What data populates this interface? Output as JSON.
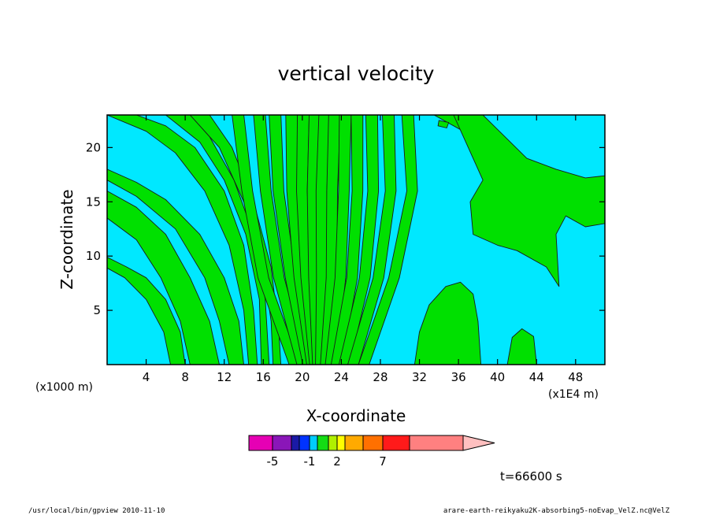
{
  "chart_data": {
    "type": "contour",
    "title": "vertical velocity",
    "xlabel": "X-coordinate",
    "ylabel": "Z-coordinate",
    "x_unit": "(x1000 m)",
    "x_unit2": "(x1E4 m)",
    "x_ticks": [
      4,
      8,
      12,
      16,
      20,
      24,
      28,
      32,
      36,
      40,
      44,
      48
    ],
    "y_ticks": [
      5,
      10,
      15,
      20
    ],
    "xlim": [
      0,
      51
    ],
    "ylim": [
      0,
      23
    ],
    "field_colors": {
      "negative": "#00e8ff",
      "positive": "#00e000",
      "contour": "#1a1a1a"
    },
    "colorbar": {
      "colors": [
        "#e600b4",
        "#8a16b8",
        "#1a1aa6",
        "#0033ff",
        "#00ccff",
        "#14dc14",
        "#b0f000",
        "#ffff00",
        "#ffaa00",
        "#ff7000",
        "#ff1a1a",
        "#ff8080",
        "#ffc0c0"
      ],
      "tick_labels": [
        {
          "label": "-5",
          "value": -5
        },
        {
          "label": "-1",
          "value": -1
        },
        {
          "label": "2",
          "value": 2
        },
        {
          "label": "7",
          "value": 7
        }
      ]
    },
    "time_label": "t=66600 s"
  },
  "footer": {
    "left": "/usr/local/bin/gpview  2010-11-10",
    "right": "arare-earth-reikyaku2K-absorbing5-noEvap_VelZ.nc@VelZ"
  }
}
